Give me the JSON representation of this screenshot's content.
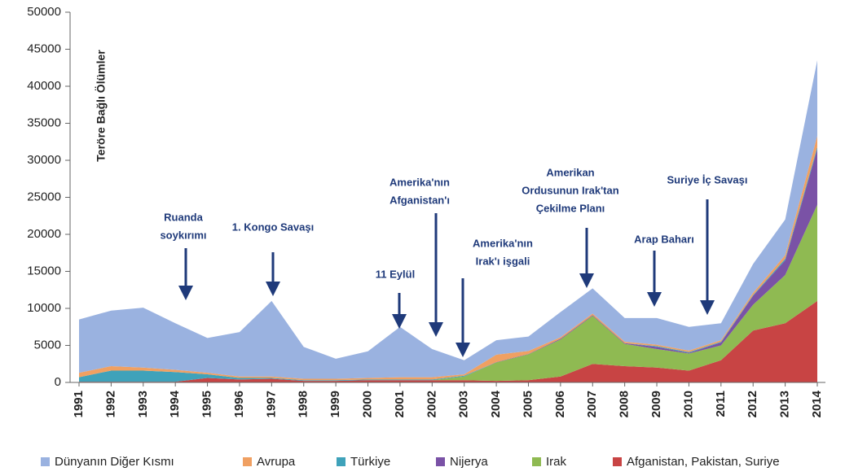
{
  "chart_data": {
    "type": "stacked_area",
    "y_label": "Teröre Bağlı Ölümler",
    "categories": [
      "1991",
      "1992",
      "1993",
      "1994",
      "1995",
      "1996",
      "1997",
      "1998",
      "1999",
      "2000",
      "2001",
      "2002",
      "2003",
      "2004",
      "2005",
      "2006",
      "2007",
      "2008",
      "2009",
      "2010",
      "2011",
      "2012",
      "2013",
      "2014"
    ],
    "series": [
      {
        "name": "Afganistan, Pakistan, Suriye",
        "color": "#c84444",
        "values": [
          100,
          100,
          100,
          100,
          600,
          400,
          500,
          200,
          200,
          300,
          300,
          300,
          300,
          200,
          300,
          800,
          2500,
          2200,
          2000,
          1600,
          3000,
          7000,
          8000,
          11000
        ]
      },
      {
        "name": "Irak",
        "color": "#8fba52",
        "values": [
          0,
          0,
          0,
          0,
          0,
          0,
          0,
          0,
          0,
          0,
          0,
          0,
          500,
          2500,
          3500,
          5000,
          6500,
          3000,
          2500,
          2300,
          2000,
          3500,
          6500,
          13000
        ]
      },
      {
        "name": "Nijerya",
        "color": "#7a52a6",
        "values": [
          0,
          0,
          0,
          0,
          0,
          0,
          0,
          0,
          0,
          0,
          0,
          0,
          0,
          50,
          50,
          100,
          100,
          100,
          300,
          100,
          400,
          1200,
          2000,
          7500
        ]
      },
      {
        "name": "Türkiye",
        "color": "#3fa2ba",
        "values": [
          600,
          1500,
          1500,
          1300,
          500,
          200,
          100,
          100,
          100,
          100,
          100,
          100,
          100,
          0,
          0,
          0,
          0,
          0,
          100,
          100,
          100,
          100,
          200,
          300
        ]
      },
      {
        "name": "Avrupa",
        "color": "#f0a062",
        "values": [
          600,
          600,
          400,
          300,
          200,
          200,
          200,
          200,
          200,
          200,
          300,
          300,
          200,
          1000,
          400,
          200,
          200,
          200,
          200,
          200,
          200,
          300,
          500,
          1500
        ]
      },
      {
        "name": "Dünyanın Diğer Kısmı",
        "color": "#9ab2e0",
        "values": [
          7200,
          7500,
          8100,
          6300,
          4700,
          6000,
          10200,
          4300,
          2700,
          3600,
          6800,
          3800,
          1900,
          1950,
          1950,
          3400,
          3400,
          3200,
          3600,
          3200,
          2300,
          3900,
          4800,
          10200
        ]
      }
    ],
    "ylim": [
      0,
      50000
    ],
    "yticks": [
      0,
      5000,
      10000,
      15000,
      20000,
      25000,
      30000,
      35000,
      40000,
      45000,
      50000
    ],
    "annotations": [
      {
        "lines": [
          "Ruanda",
          "soykırımı"
        ]
      },
      {
        "lines": [
          "1. Kongo Savaşı"
        ]
      },
      {
        "lines": [
          "11 Eylül"
        ]
      },
      {
        "lines": [
          "Amerika'nın",
          "Afganistan'ı"
        ]
      },
      {
        "lines": [
          "Amerika'nın",
          "Irak'ı işgali"
        ]
      },
      {
        "lines": [
          "Amerikan",
          "Ordusunun Irak'tan",
          "Çekilme Planı"
        ]
      },
      {
        "lines": [
          "Arap Baharı"
        ]
      },
      {
        "lines": [
          "Suriye İç Savaşı"
        ]
      }
    ],
    "legend": "bottom"
  }
}
